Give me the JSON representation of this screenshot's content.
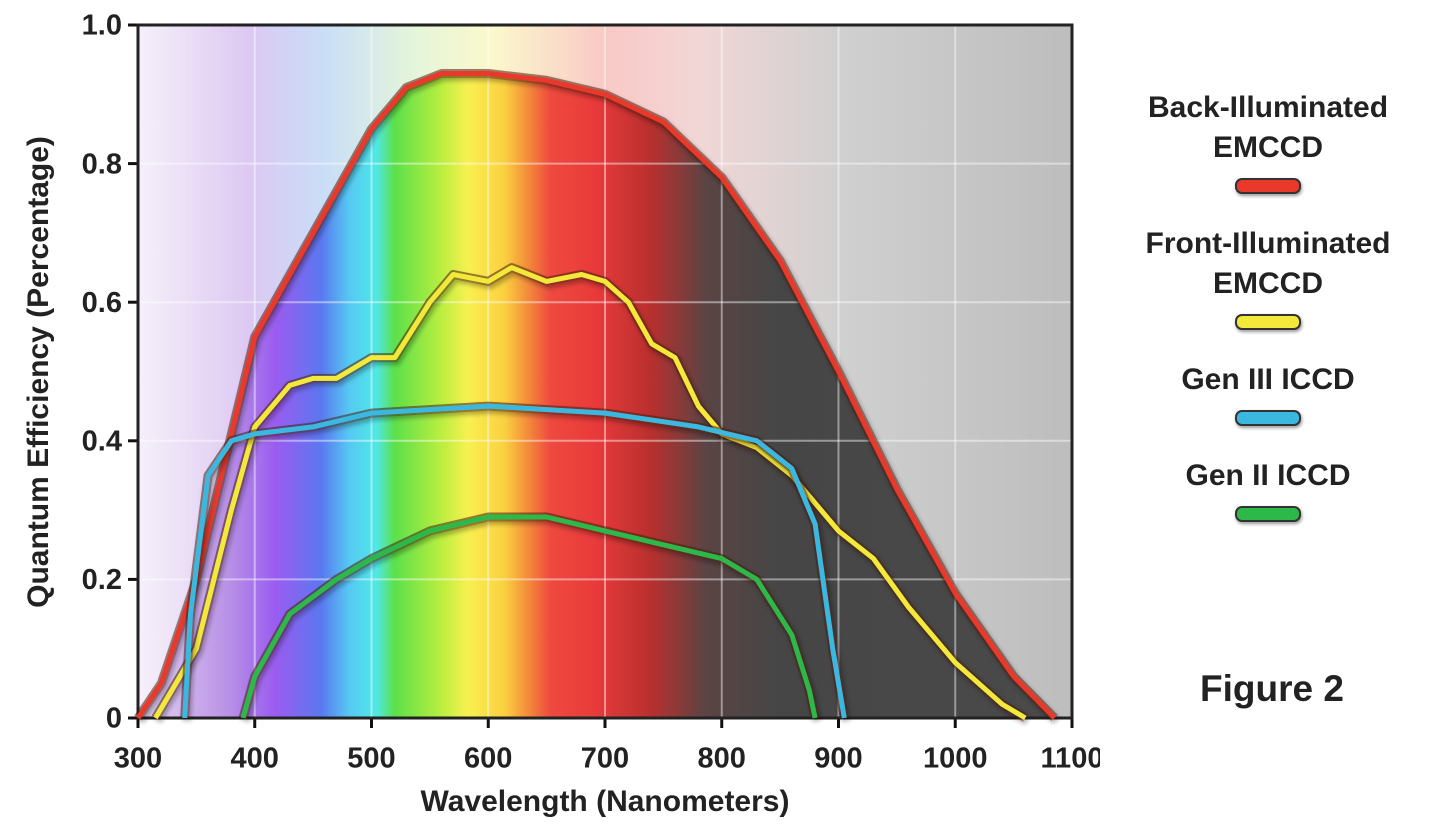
{
  "chart_data": {
    "type": "line",
    "y_label": "Quantum Efficiency (Percentage)",
    "x_label": "Wavelength (Nanometers)",
    "annotation": "Figure 2",
    "xlim": [
      300,
      1100
    ],
    "xticks": [
      300,
      400,
      500,
      600,
      700,
      800,
      900,
      1000,
      1100
    ],
    "ylim": [
      0,
      1
    ],
    "yticks": [
      0,
      0.2,
      0.4,
      0.6,
      0.8,
      {
        "value": 1,
        "label": "1.0"
      }
    ],
    "grid": true,
    "series": [
      {
        "name": "Back-Illuminated EMCCD",
        "color": "#e8392b",
        "x": [
          300,
          320,
          350,
          400,
          450,
          500,
          530,
          560,
          600,
          650,
          700,
          750,
          800,
          850,
          900,
          950,
          1000,
          1050,
          1085
        ],
        "values": [
          0,
          0.05,
          0.2,
          0.55,
          0.7,
          0.85,
          0.91,
          0.93,
          0.93,
          0.92,
          0.9,
          0.86,
          0.78,
          0.66,
          0.5,
          0.33,
          0.18,
          0.06,
          0
        ]
      },
      {
        "name": "Front-Illuminated EMCCD",
        "color": "#f2e93a",
        "x": [
          315,
          350,
          380,
          400,
          430,
          450,
          470,
          500,
          520,
          550,
          570,
          600,
          620,
          650,
          680,
          700,
          720,
          740,
          760,
          780,
          800,
          830,
          860,
          900,
          930,
          960,
          1000,
          1040,
          1060
        ],
        "values": [
          0,
          0.1,
          0.3,
          0.42,
          0.48,
          0.49,
          0.49,
          0.52,
          0.52,
          0.6,
          0.64,
          0.63,
          0.65,
          0.63,
          0.64,
          0.63,
          0.6,
          0.54,
          0.52,
          0.45,
          0.41,
          0.39,
          0.35,
          0.27,
          0.23,
          0.16,
          0.08,
          0.02,
          0
        ]
      },
      {
        "name": "Gen III ICCD",
        "color": "#3ab8e0",
        "x": [
          340,
          345,
          360,
          380,
          400,
          450,
          500,
          600,
          700,
          780,
          830,
          860,
          880,
          895,
          905
        ],
        "values": [
          0,
          0.15,
          0.35,
          0.4,
          0.41,
          0.42,
          0.44,
          0.45,
          0.44,
          0.42,
          0.4,
          0.36,
          0.28,
          0.1,
          0
        ]
      },
      {
        "name": "Gen II ICCD",
        "color": "#2db84a",
        "x": [
          390,
          400,
          430,
          470,
          500,
          550,
          600,
          650,
          700,
          750,
          800,
          830,
          860,
          875,
          880
        ],
        "values": [
          0,
          0.06,
          0.15,
          0.2,
          0.23,
          0.27,
          0.29,
          0.29,
          0.27,
          0.25,
          0.23,
          0.2,
          0.12,
          0.04,
          0
        ]
      }
    ]
  }
}
